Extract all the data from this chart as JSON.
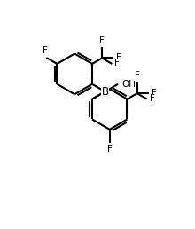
{
  "background_color": "#ffffff",
  "line_color": "#000000",
  "line_width": 1.5,
  "font_size": 7.5,
  "figsize": [
    2.2,
    2.58
  ],
  "dpi": 100,
  "xlim": [
    0,
    11
  ],
  "ylim": [
    0,
    13
  ]
}
